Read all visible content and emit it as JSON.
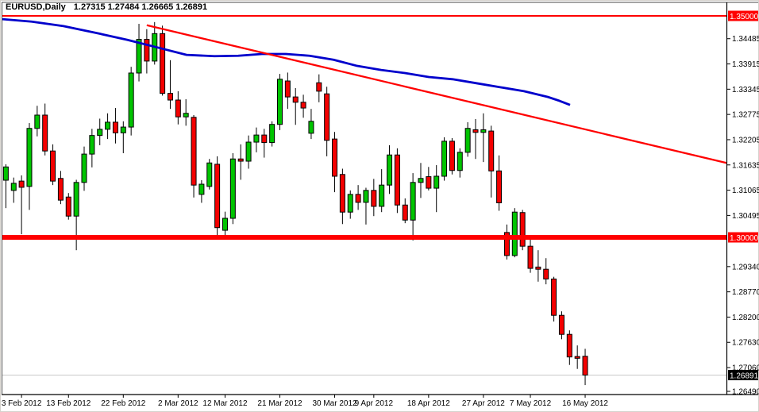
{
  "title": {
    "symbol": "EURUSD,Daily",
    "ohlc": "1.27315 1.27484 1.26665 1.26891"
  },
  "price_tags": {
    "resistance": "1.35000",
    "support": "1.30000",
    "current": "1.26891"
  },
  "chart_data": {
    "type": "candlestick",
    "symbol": "EURUSD",
    "timeframe": "Daily",
    "current_bar": {
      "open": 1.27315,
      "high": 1.27484,
      "low": 1.26665,
      "close": 1.26891
    },
    "up_color": "#00C400",
    "down_color": "#F40000",
    "wick_color": "#000000",
    "candles": [
      [
        "2012.02.01",
        1.3129,
        1.3165,
        1.3066,
        1.3159
      ],
      [
        "2012.02.02",
        1.3106,
        1.3135,
        1.3078,
        1.3122
      ],
      [
        "2012.02.03",
        1.3127,
        1.314,
        1.3007,
        1.3113
      ],
      [
        "2012.02.06",
        1.3115,
        1.3258,
        1.3062,
        1.3246
      ],
      [
        "2012.02.07",
        1.3246,
        1.3297,
        1.3228,
        1.3276
      ],
      [
        "2012.02.08",
        1.3276,
        1.3302,
        1.3185,
        1.3195
      ],
      [
        "2012.02.09",
        1.3195,
        1.321,
        1.3118,
        1.3127
      ],
      [
        "2012.02.10",
        1.3133,
        1.315,
        1.3075,
        1.3084
      ],
      [
        "2012.02.13",
        1.3091,
        1.31,
        1.304,
        1.3048
      ],
      [
        "2012.02.14",
        1.3048,
        1.313,
        1.2971,
        1.3124
      ],
      [
        "2012.02.15",
        1.3124,
        1.3205,
        1.3105,
        1.3188
      ],
      [
        "2012.02.16",
        1.3188,
        1.3245,
        1.3158,
        1.323
      ],
      [
        "2012.02.17",
        1.323,
        1.3268,
        1.3208,
        1.3244
      ],
      [
        "2012.02.20",
        1.3244,
        1.328,
        1.3222,
        1.326
      ],
      [
        "2012.02.21",
        1.326,
        1.3292,
        1.3212,
        1.3236
      ],
      [
        "2012.02.22",
        1.3236,
        1.3262,
        1.319,
        1.3249
      ],
      [
        "2012.02.23",
        1.3249,
        1.3385,
        1.323,
        1.3371
      ],
      [
        "2012.02.24",
        1.3371,
        1.3482,
        1.3352,
        1.3447
      ],
      [
        "2012.02.27",
        1.3447,
        1.347,
        1.337,
        1.3398
      ],
      [
        "2012.02.28",
        1.3398,
        1.3486,
        1.339,
        1.346
      ],
      [
        "2012.02.29",
        1.346,
        1.3478,
        1.332,
        1.3325
      ],
      [
        "2012.03.01",
        1.3325,
        1.34,
        1.329,
        1.331
      ],
      [
        "2012.03.02",
        1.331,
        1.333,
        1.3255,
        1.3272
      ],
      [
        "2012.03.05",
        1.3272,
        1.3312,
        1.3252,
        1.328
      ],
      [
        "2012.03.06",
        1.3271,
        1.3276,
        1.309,
        1.3118
      ],
      [
        "2012.03.07",
        1.3097,
        1.3129,
        1.3078,
        1.312
      ],
      [
        "2012.03.08",
        1.3115,
        1.3177,
        1.3108,
        1.3168
      ],
      [
        "2012.03.09",
        1.3165,
        1.3183,
        1.3005,
        1.3022
      ],
      [
        "2012.03.12",
        1.3016,
        1.3058,
        1.3002,
        1.3043
      ],
      [
        "2012.03.13",
        1.3043,
        1.319,
        1.303,
        1.3177
      ],
      [
        "2012.03.14",
        1.3177,
        1.321,
        1.313,
        1.3172
      ],
      [
        "2012.03.15",
        1.3172,
        1.323,
        1.3155,
        1.3215
      ],
      [
        "2012.03.16",
        1.3215,
        1.3248,
        1.3192,
        1.3231
      ],
      [
        "2012.03.19",
        1.3231,
        1.3245,
        1.318,
        1.3214
      ],
      [
        "2012.03.20",
        1.3214,
        1.3262,
        1.3205,
        1.3255
      ],
      [
        "2012.03.21",
        1.3255,
        1.3369,
        1.3242,
        1.3357
      ],
      [
        "2012.03.22",
        1.3353,
        1.3372,
        1.329,
        1.3317
      ],
      [
        "2012.03.23",
        1.3317,
        1.3337,
        1.3254,
        1.3305
      ],
      [
        "2012.03.26",
        1.3305,
        1.3322,
        1.327,
        1.3292
      ],
      [
        "2012.03.27",
        1.3235,
        1.329,
        1.3222,
        1.3262
      ],
      [
        "2012.03.28",
        1.3349,
        1.3368,
        1.3305,
        1.333
      ],
      [
        "2012.03.29",
        1.3324,
        1.334,
        1.3183,
        1.3219
      ],
      [
        "2012.03.30",
        1.3222,
        1.3238,
        1.3102,
        1.3138
      ],
      [
        "2012.04.02",
        1.3142,
        1.3155,
        1.303,
        1.3057
      ],
      [
        "2012.04.03",
        1.3057,
        1.3106,
        1.3042,
        1.3097
      ],
      [
        "2012.04.04",
        1.3097,
        1.3118,
        1.3062,
        1.3079
      ],
      [
        "2012.04.05",
        1.3079,
        1.3112,
        1.3029,
        1.3106
      ],
      [
        "2012.04.09",
        1.3106,
        1.3132,
        1.3048,
        1.307
      ],
      [
        "2012.04.10",
        1.307,
        1.3154,
        1.3057,
        1.3118
      ],
      [
        "2012.04.11",
        1.3118,
        1.3208,
        1.3098,
        1.3186
      ],
      [
        "2012.04.12",
        1.3186,
        1.3201,
        1.3055,
        1.3073
      ],
      [
        "2012.04.13",
        1.3073,
        1.3088,
        1.3032,
        1.3039
      ],
      [
        "2012.04.16",
        1.3039,
        1.3145,
        1.2993,
        1.3124
      ],
      [
        "2012.04.17",
        1.3124,
        1.3168,
        1.3089,
        1.3133
      ],
      [
        "2012.04.18",
        1.3137,
        1.3159,
        1.3106,
        1.3111
      ],
      [
        "2012.04.19",
        1.3111,
        1.3163,
        1.3057,
        1.3138
      ],
      [
        "2012.04.20",
        1.3138,
        1.3226,
        1.3128,
        1.3217
      ],
      [
        "2012.04.23",
        1.3217,
        1.3224,
        1.3142,
        1.3151
      ],
      [
        "2012.04.24",
        1.3151,
        1.3201,
        1.3135,
        1.3192
      ],
      [
        "2012.04.25",
        1.3192,
        1.326,
        1.3182,
        1.3246
      ],
      [
        "2012.04.26",
        1.3243,
        1.3267,
        1.3177,
        1.3237
      ],
      [
        "2012.04.27",
        1.3237,
        1.328,
        1.317,
        1.3243
      ],
      [
        "2012.04.30",
        1.324,
        1.3252,
        1.309,
        1.315
      ],
      [
        "2012.05.01",
        1.315,
        1.3185,
        1.306,
        1.3078
      ],
      [
        "2012.05.02",
        1.3011,
        1.3029,
        1.295,
        1.2959
      ],
      [
        "2012.05.03",
        1.2959,
        1.3066,
        1.2955,
        1.3057
      ],
      [
        "2012.05.04",
        1.3056,
        1.3062,
        1.2971,
        1.298
      ],
      [
        "2012.05.07",
        1.298,
        1.3005,
        1.292,
        1.293
      ],
      [
        "2012.05.08",
        1.2933,
        1.2971,
        1.29,
        1.2928
      ],
      [
        "2012.05.09",
        1.2928,
        1.2953,
        1.2894,
        1.2906
      ],
      [
        "2012.05.10",
        1.2906,
        1.2911,
        1.281,
        1.2824
      ],
      [
        "2012.05.11",
        1.2824,
        1.2833,
        1.277,
        1.2781
      ],
      [
        "2012.05.14",
        1.2781,
        1.279,
        1.2712,
        1.273
      ],
      [
        "2012.05.15",
        1.2731,
        1.2756,
        1.2703,
        1.2727
      ],
      [
        "2012.05.16",
        1.27315,
        1.27484,
        1.26665,
        1.26891
      ]
    ],
    "moving_average": {
      "color": "#0000CC",
      "points": [
        [
          -0.75,
          1.3493
        ],
        [
          3.31,
          1.3487
        ],
        [
          7.36,
          1.3477
        ],
        [
          11.42,
          1.3462
        ],
        [
          15.48,
          1.3446
        ],
        [
          19.53,
          1.3428
        ],
        [
          23.08,
          1.3412
        ],
        [
          26.63,
          1.3409
        ],
        [
          29.68,
          1.341
        ],
        [
          32.72,
          1.3414
        ],
        [
          35.76,
          1.3414
        ],
        [
          38.8,
          1.341
        ],
        [
          41.85,
          1.3401
        ],
        [
          44.89,
          1.3387
        ],
        [
          47.93,
          1.3378
        ],
        [
          50.97,
          1.3371
        ],
        [
          54.02,
          1.3362
        ],
        [
          57.06,
          1.3357
        ],
        [
          60.1,
          1.3348
        ],
        [
          63.14,
          1.3339
        ],
        [
          66.19,
          1.333
        ],
        [
          69.23,
          1.3317
        ],
        [
          70.75,
          1.3308
        ],
        [
          72.07,
          1.3299
        ]
      ]
    },
    "trendline": {
      "color": "#FF0000",
      "from": [
        18.0,
        1.3479
      ],
      "to": [
        92.05,
        1.3168
      ]
    },
    "hlines": [
      {
        "price": 1.35,
        "label": "1.35000",
        "color": "#FF0000",
        "width": 2
      },
      {
        "price": 1.3,
        "label": "1.30000",
        "color": "#FF0000",
        "width": 6
      }
    ],
    "current_price": {
      "price": 1.26891,
      "label": "1.26891",
      "line_color": "#C9C9C9",
      "box_color": "#000000"
    },
    "price_axis": [
      1.34485,
      1.33915,
      1.33345,
      1.32775,
      1.32205,
      1.31635,
      1.31065,
      1.30495,
      1.2934,
      1.2877,
      1.282,
      1.2763,
      1.2706,
      1.2649
    ],
    "date_axis": [
      {
        "label": "3 Feb 2012",
        "index": 2
      },
      {
        "label": "13 Feb 2012",
        "index": 8
      },
      {
        "label": "22 Feb 2012",
        "index": 15
      },
      {
        "label": "2 Mar 2012",
        "index": 22
      },
      {
        "label": "12 Mar 2012",
        "index": 28
      },
      {
        "label": "21 Mar 2012",
        "index": 35
      },
      {
        "label": "30 Mar 2012",
        "index": 42
      },
      {
        "label": "9 Apr 2012",
        "index": 47
      },
      {
        "label": "18 Apr 2012",
        "index": 54
      },
      {
        "label": "27 Apr 2012",
        "index": 61
      },
      {
        "label": "7 May 2012",
        "index": 67
      },
      {
        "label": "16 May 2012",
        "index": 74
      }
    ]
  }
}
